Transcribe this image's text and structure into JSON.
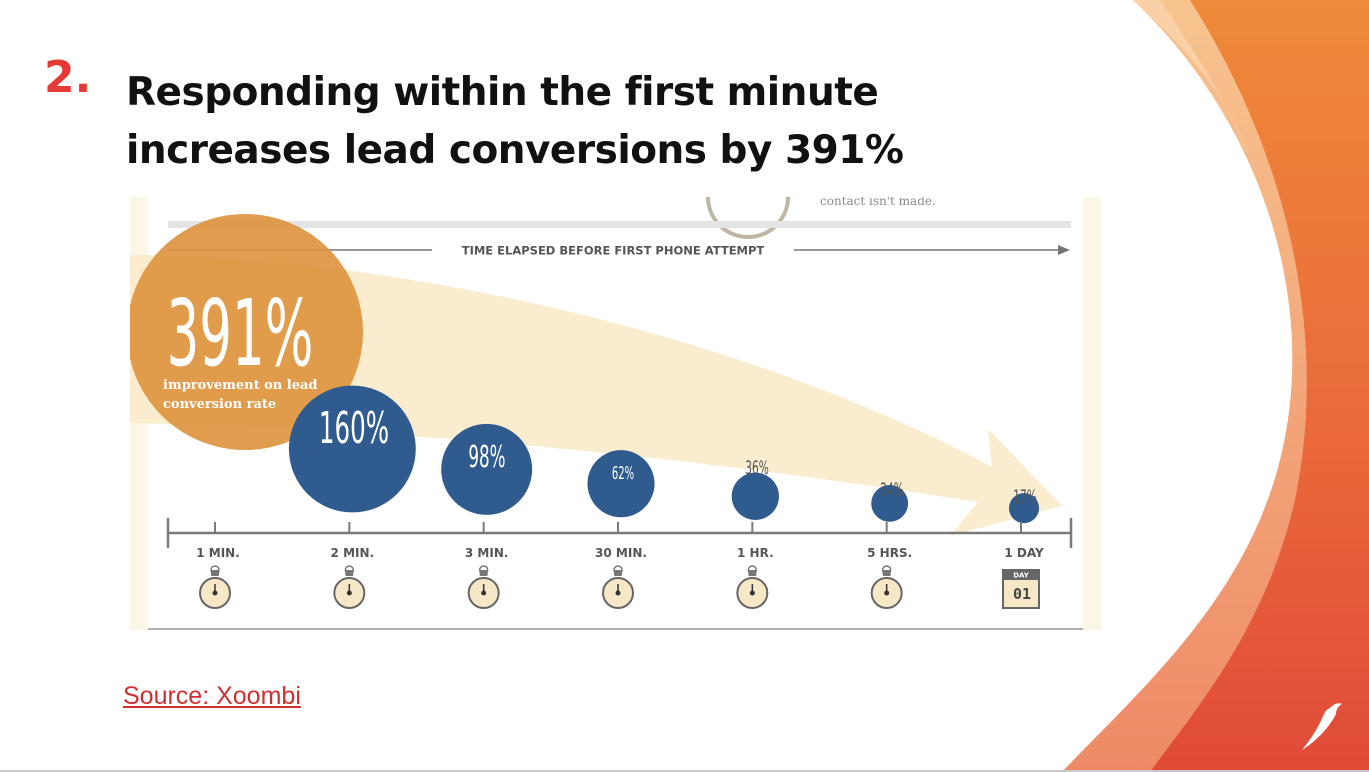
{
  "slide": {
    "number": "2.",
    "title_line1": "Responding within the first minute",
    "title_line2": "increases lead conversions by 391%",
    "source_label": "Source: Xoombi",
    "accent_color": "#e53935"
  },
  "infographic": {
    "top_fragment": "contact isn't made.",
    "axis_title": "TIME ELAPSED BEFORE FIRST PHONE ATTEMPT",
    "big_value": "391%",
    "big_caption_line1": "improvement on lead",
    "big_caption_line2": "conversion rate",
    "calendar_top": "DAY",
    "calendar_num": "01"
  },
  "chart_data": {
    "type": "scatter",
    "title": "TIME ELAPSED BEFORE FIRST PHONE ATTEMPT",
    "categories": [
      "1 MIN.",
      "2 MIN.",
      "3 MIN.",
      "30 MIN.",
      "1 HR.",
      "5 HRS.",
      "1 DAY"
    ],
    "values": [
      391,
      160,
      98,
      62,
      36,
      24,
      17
    ],
    "labels": [
      "391%",
      "160%",
      "98%",
      "62%",
      "36%",
      "24%",
      "17%"
    ],
    "colors": {
      "first": "#de9540",
      "others": "#2f5b8f",
      "arrow": "#f9ebca",
      "axis": "#7a7a7a"
    }
  }
}
